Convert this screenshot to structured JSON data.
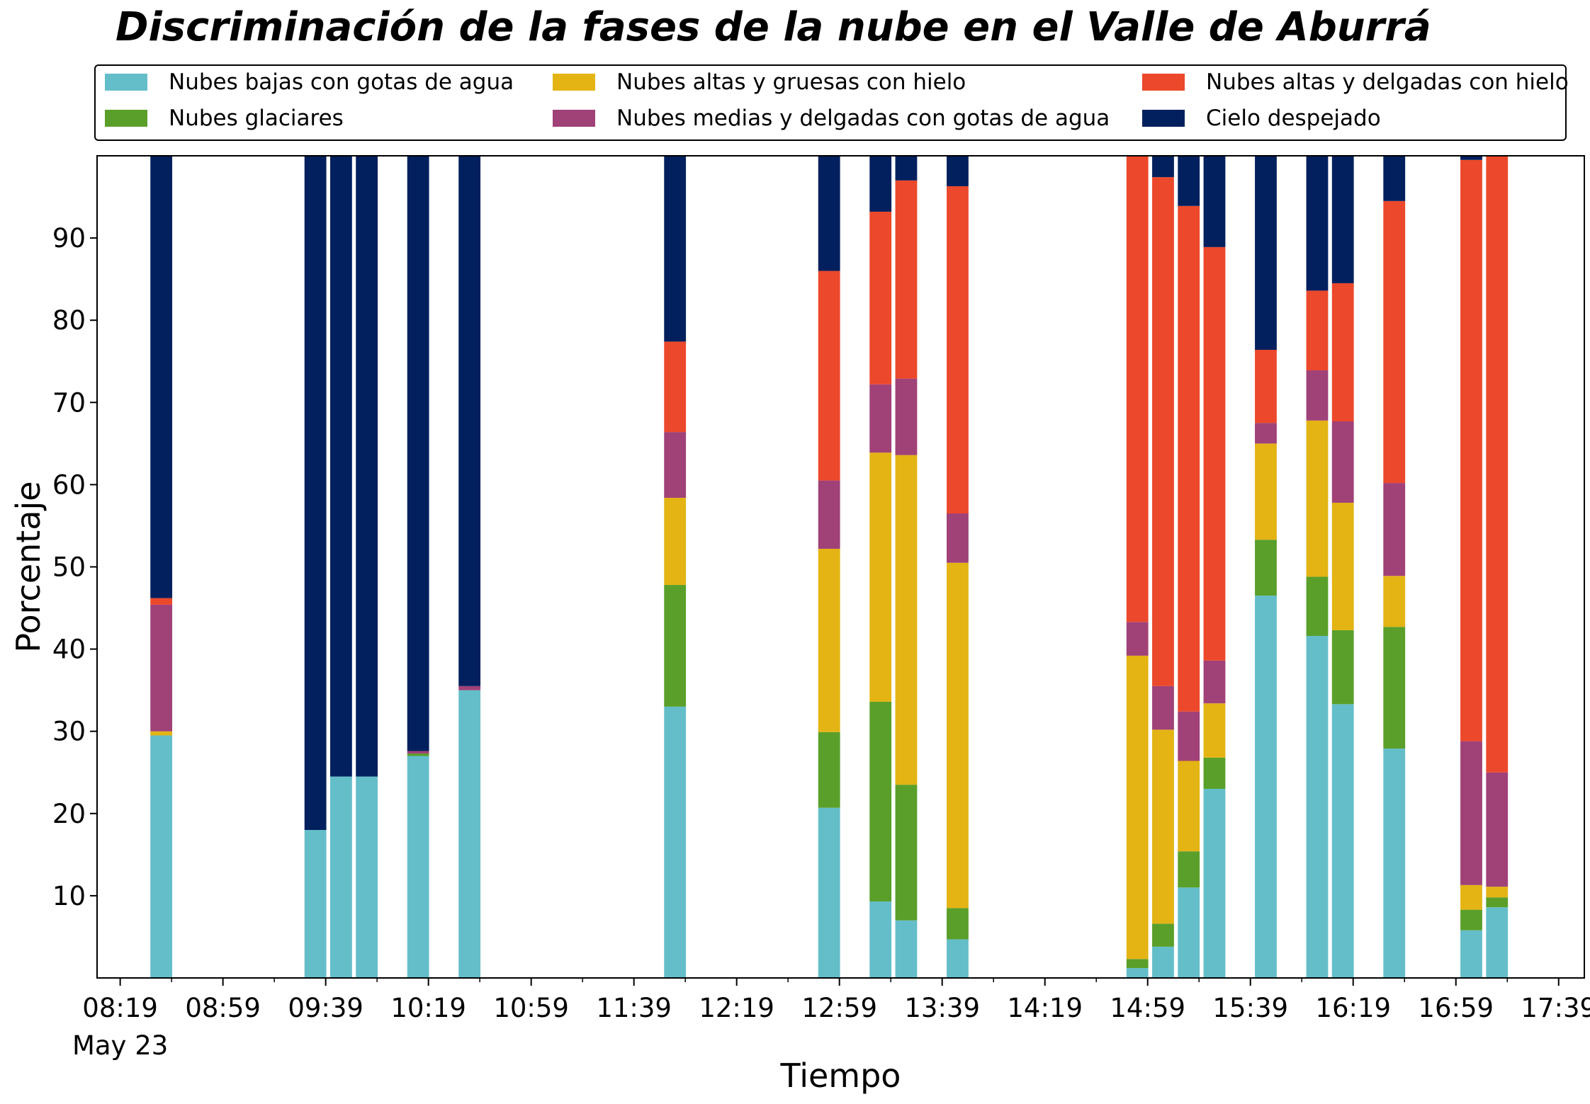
{
  "chart_data": {
    "type": "bar",
    "stacked": true,
    "title": "Discriminación de la fases de la nube en el Valle de Aburrá",
    "xlabel": "Tiempo",
    "ylabel": "Porcentaje",
    "ylim": [
      0,
      100
    ],
    "xlim": [
      "08:10",
      "17:49"
    ],
    "bar_width_minutes": 8.5,
    "grid": false,
    "legend_position": "top",
    "yticks": [
      10,
      20,
      30,
      40,
      50,
      60,
      70,
      80,
      90
    ],
    "xticks": [
      "08:19",
      "08:59",
      "09:39",
      "10:19",
      "10:59",
      "11:39",
      "12:19",
      "12:59",
      "13:39",
      "14:19",
      "14:59",
      "15:39",
      "16:19",
      "16:59",
      "17:39"
    ],
    "xtick_date_label": "May 23",
    "times": [
      "08:35",
      "09:35",
      "09:45",
      "09:55",
      "10:15",
      "10:35",
      "11:55",
      "12:55",
      "13:15",
      "13:25",
      "13:45",
      "14:55",
      "15:05",
      "15:15",
      "15:25",
      "15:45",
      "16:05",
      "16:15",
      "16:35",
      "17:05",
      "17:15"
    ],
    "series": [
      {
        "name": "Nubes bajas con gotas de agua",
        "color": "#64bec9",
        "values": [
          29.5,
          18,
          24.5,
          24.5,
          27,
          35,
          33,
          20.7,
          9.3,
          7,
          4.7,
          1.2,
          3.8,
          11,
          23,
          46.5,
          41.6,
          33.3,
          27.9,
          5.8,
          8.6
        ]
      },
      {
        "name": "Nubes glaciares",
        "color": "#5a9f2a",
        "values": [
          0,
          0,
          0,
          0,
          0.3,
          0,
          14.8,
          9.2,
          24.3,
          16.5,
          3.8,
          1.1,
          2.8,
          4.4,
          3.8,
          6.8,
          7.2,
          9,
          14.8,
          2.5,
          1.2
        ]
      },
      {
        "name": "Nubes altas y gruesas con hielo",
        "color": "#e3b414",
        "values": [
          0.5,
          0,
          0,
          0,
          0,
          0,
          10.6,
          22.3,
          30.3,
          40.1,
          42,
          36.9,
          23.6,
          11,
          6.6,
          11.7,
          19,
          15.5,
          6.2,
          3,
          1.3
        ]
      },
      {
        "name": "Nubes medias y delgadas con gotas de agua",
        "color": "#a04178",
        "values": [
          15.4,
          0,
          0,
          0,
          0.3,
          0.5,
          8,
          8.3,
          8.3,
          9.3,
          6,
          4.1,
          5.3,
          6,
          5.2,
          2.5,
          6.1,
          9.9,
          11.3,
          17.5,
          13.9
        ]
      },
      {
        "name": "Nubes altas y delgadas con hielo",
        "color": "#ec482b",
        "values": [
          0.8,
          0,
          0,
          0,
          0,
          0,
          11,
          25.5,
          21,
          24.1,
          39.8,
          56.7,
          61.9,
          61.5,
          50.3,
          8.9,
          9.7,
          16.8,
          34.3,
          70.7,
          75
        ]
      },
      {
        "name": "Cielo despejado",
        "color": "#03205e",
        "values": [
          53.8,
          82,
          75.5,
          75.5,
          72.4,
          64.5,
          22.6,
          14,
          6.8,
          3,
          3.7,
          0,
          2.6,
          6.1,
          11.1,
          23.6,
          16.4,
          15.5,
          5.5,
          0.5,
          0
        ]
      }
    ]
  }
}
